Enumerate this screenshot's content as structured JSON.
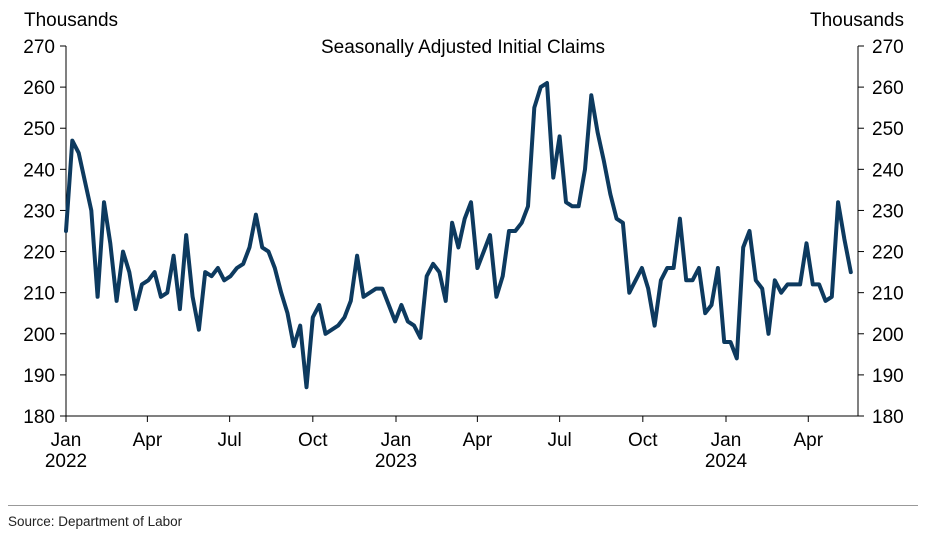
{
  "chart_data": {
    "type": "line",
    "title": "Seasonally Adjusted Initial Claims",
    "ylabel_left": "Thousands",
    "ylabel_right": "Thousands",
    "ylim": [
      180,
      270
    ],
    "yticks": [
      180,
      190,
      200,
      210,
      220,
      230,
      240,
      250,
      260,
      270
    ],
    "xticks": [
      {
        "label": "Jan",
        "year": "2022",
        "date": "2022-01-01"
      },
      {
        "label": "Apr",
        "year": "",
        "date": "2022-04-01"
      },
      {
        "label": "Jul",
        "year": "",
        "date": "2022-07-01"
      },
      {
        "label": "Oct",
        "year": "",
        "date": "2022-10-01"
      },
      {
        "label": "Jan",
        "year": "2023",
        "date": "2023-01-01"
      },
      {
        "label": "Apr",
        "year": "",
        "date": "2023-04-01"
      },
      {
        "label": "Jul",
        "year": "",
        "date": "2023-07-01"
      },
      {
        "label": "Oct",
        "year": "",
        "date": "2023-10-01"
      },
      {
        "label": "Jan",
        "year": "2024",
        "date": "2024-01-01"
      },
      {
        "label": "Apr",
        "year": "",
        "date": "2024-04-01"
      }
    ],
    "xlim": [
      "2022-01-01",
      "2024-05-26"
    ],
    "grid": false,
    "color": "#0d3a5f",
    "series": [
      {
        "start": "2022-01-01",
        "interval_days": 7,
        "values": [
          225,
          247,
          244,
          237,
          230,
          209,
          232,
          222,
          208,
          220,
          215,
          206,
          212,
          213,
          215,
          209,
          210,
          219,
          206,
          224,
          209,
          201,
          215,
          214,
          216,
          213,
          214,
          216,
          217,
          221,
          229,
          221,
          220,
          216,
          210,
          205,
          197,
          202,
          187,
          204,
          207,
          200,
          201,
          202,
          204,
          208,
          219,
          209,
          210,
          211,
          211,
          207,
          203,
          207,
          203,
          202,
          199,
          214,
          217,
          215,
          208,
          227,
          221,
          228,
          232,
          216,
          220,
          224,
          209,
          214,
          225,
          225,
          227,
          231,
          255,
          260,
          261,
          238,
          248,
          232,
          231,
          231,
          240,
          258,
          249,
          242,
          234,
          228,
          227,
          210,
          213,
          216,
          211,
          202,
          213,
          216,
          216,
          228,
          213,
          213,
          216,
          205,
          207,
          216,
          198,
          198,
          194,
          221,
          225,
          213,
          211,
          200,
          213,
          210,
          212,
          212,
          212,
          222,
          212,
          212,
          208,
          209,
          232,
          223,
          215
        ]
      }
    ]
  },
  "footer": {
    "source": "Source: Department of Labor"
  }
}
